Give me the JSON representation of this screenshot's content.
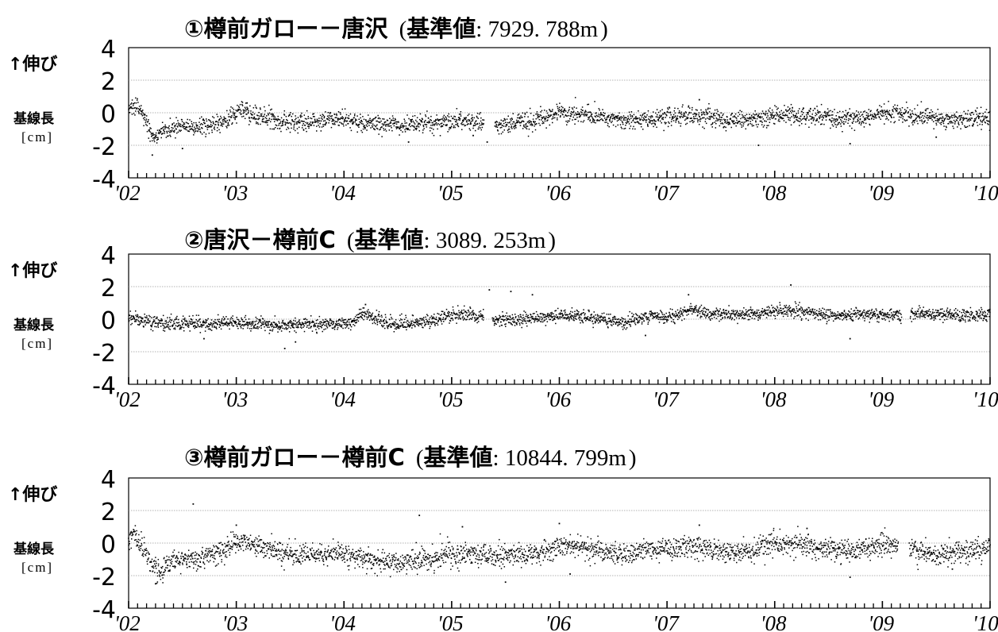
{
  "common": {
    "ylabel_arrow": "↑伸び",
    "ylabel_main": "基線長",
    "ylabel_unit": "[cm]",
    "x_tick_labels": [
      "'02",
      "'03",
      "'04",
      "'05",
      "'06",
      "'07",
      "'08",
      "'09",
      "'10"
    ],
    "y_tick_labels": [
      "4",
      "2",
      "0",
      "-2",
      "-4"
    ]
  },
  "chart_data": [
    {
      "type": "scatter",
      "title_prefix": "①樽前ガロー－唐沢",
      "title_ref_label": "基準値",
      "title_ref_value": "7929. 788m",
      "x_range": [
        2002.0,
        2010.0
      ],
      "ylim": [
        -4,
        4
      ],
      "gridlines": [
        2,
        0,
        -2
      ],
      "legend": "none",
      "gaps": [
        [
          2005.3,
          2005.4
        ]
      ],
      "series": [
        {
          "values": [
            [
              2002.0,
              0.1
            ],
            [
              2002.05,
              0.4
            ],
            [
              2002.1,
              0.3
            ],
            [
              2002.15,
              -0.4
            ],
            [
              2002.2,
              -1.1
            ],
            [
              2002.25,
              -1.5
            ],
            [
              2002.3,
              -1.2
            ],
            [
              2002.4,
              -0.9
            ],
            [
              2002.5,
              -0.8
            ],
            [
              2002.6,
              -0.9
            ],
            [
              2002.75,
              -0.8
            ],
            [
              2002.9,
              -0.5
            ],
            [
              2003.0,
              -0.1
            ],
            [
              2003.05,
              0.2
            ],
            [
              2003.15,
              -0.1
            ],
            [
              2003.3,
              -0.4
            ],
            [
              2003.5,
              -0.6
            ],
            [
              2003.7,
              -0.5
            ],
            [
              2003.9,
              -0.4
            ],
            [
              2004.1,
              -0.5
            ],
            [
              2004.3,
              -0.7
            ],
            [
              2004.5,
              -0.8
            ],
            [
              2004.7,
              -0.7
            ],
            [
              2004.9,
              -0.6
            ],
            [
              2005.1,
              -0.5
            ],
            [
              2005.29,
              -0.6
            ],
            [
              2005.42,
              -0.7
            ],
            [
              2005.6,
              -0.7
            ],
            [
              2005.8,
              -0.4
            ],
            [
              2006.0,
              0.0
            ],
            [
              2006.2,
              -0.1
            ],
            [
              2006.4,
              -0.3
            ],
            [
              2006.6,
              -0.5
            ],
            [
              2006.8,
              -0.4
            ],
            [
              2007.0,
              -0.3
            ],
            [
              2007.2,
              -0.2
            ],
            [
              2007.4,
              -0.3
            ],
            [
              2007.6,
              -0.5
            ],
            [
              2007.8,
              -0.4
            ],
            [
              2008.0,
              -0.1
            ],
            [
              2008.2,
              -0.1
            ],
            [
              2008.4,
              -0.2
            ],
            [
              2008.6,
              -0.4
            ],
            [
              2008.8,
              -0.3
            ],
            [
              2009.0,
              0.0
            ],
            [
              2009.2,
              -0.1
            ],
            [
              2009.4,
              -0.3
            ],
            [
              2009.6,
              -0.5
            ],
            [
              2009.8,
              -0.4
            ],
            [
              2010.0,
              -0.3
            ]
          ],
          "outliers": [
            [
              2002.22,
              -2.6
            ],
            [
              2002.5,
              -2.2
            ],
            [
              2003.1,
              0.6
            ],
            [
              2003.35,
              -1.0
            ],
            [
              2004.6,
              -1.8
            ],
            [
              2005.2,
              -1.4
            ],
            [
              2005.33,
              -1.8
            ],
            [
              2007.3,
              0.8
            ],
            [
              2007.85,
              -2.0
            ],
            [
              2008.7,
              -1.9
            ],
            [
              2009.5,
              -1.5
            ]
          ],
          "noise_sd": 0.27
        }
      ]
    },
    {
      "type": "scatter",
      "title_prefix": "②唐沢－樽前C",
      "title_ref_label": "基準値",
      "title_ref_value": "3089. 253m",
      "x_range": [
        2002.0,
        2010.0
      ],
      "ylim": [
        -4,
        4
      ],
      "gridlines": [
        2,
        0,
        -2
      ],
      "legend": "none",
      "gaps": [
        [
          2005.3,
          2005.38
        ],
        [
          2009.18,
          2009.26
        ]
      ],
      "series": [
        {
          "values": [
            [
              2002.0,
              0.1
            ],
            [
              2002.1,
              -0.1
            ],
            [
              2002.3,
              -0.3
            ],
            [
              2002.5,
              -0.3
            ],
            [
              2002.7,
              -0.3
            ],
            [
              2002.9,
              -0.2
            ],
            [
              2003.0,
              -0.2
            ],
            [
              2003.2,
              -0.3
            ],
            [
              2003.4,
              -0.4
            ],
            [
              2003.6,
              -0.3
            ],
            [
              2003.8,
              -0.3
            ],
            [
              2004.0,
              -0.3
            ],
            [
              2004.1,
              -0.2
            ],
            [
              2004.18,
              0.5
            ],
            [
              2004.25,
              0.1
            ],
            [
              2004.4,
              -0.2
            ],
            [
              2004.6,
              -0.3
            ],
            [
              2004.8,
              -0.1
            ],
            [
              2004.95,
              0.2
            ],
            [
              2005.1,
              0.3
            ],
            [
              2005.29,
              0.1
            ],
            [
              2005.4,
              -0.1
            ],
            [
              2005.6,
              0.0
            ],
            [
              2005.8,
              0.1
            ],
            [
              2006.0,
              0.2
            ],
            [
              2006.2,
              0.2
            ],
            [
              2006.4,
              0.0
            ],
            [
              2006.6,
              -0.2
            ],
            [
              2006.8,
              0.1
            ],
            [
              2007.0,
              0.2
            ],
            [
              2007.15,
              0.4
            ],
            [
              2007.25,
              0.6
            ],
            [
              2007.4,
              0.3
            ],
            [
              2007.6,
              0.3
            ],
            [
              2007.8,
              0.3
            ],
            [
              2008.0,
              0.5
            ],
            [
              2008.2,
              0.5
            ],
            [
              2008.4,
              0.3
            ],
            [
              2008.6,
              0.2
            ],
            [
              2008.8,
              0.3
            ],
            [
              2009.0,
              0.3
            ],
            [
              2009.17,
              0.2
            ],
            [
              2009.27,
              0.3
            ],
            [
              2009.5,
              0.3
            ],
            [
              2009.7,
              0.2
            ],
            [
              2009.9,
              0.3
            ],
            [
              2010.0,
              0.3
            ]
          ],
          "outliers": [
            [
              2002.7,
              -1.2
            ],
            [
              2003.45,
              -1.8
            ],
            [
              2003.55,
              -1.4
            ],
            [
              2004.2,
              0.9
            ],
            [
              2005.35,
              1.8
            ],
            [
              2005.55,
              1.7
            ],
            [
              2005.75,
              1.5
            ],
            [
              2006.8,
              -1.0
            ],
            [
              2007.2,
              1.5
            ],
            [
              2008.15,
              2.1
            ],
            [
              2008.7,
              -1.2
            ]
          ],
          "noise_sd": 0.2
        }
      ]
    },
    {
      "type": "scatter",
      "title_prefix": "③樽前ガロー－樽前C",
      "title_ref_label": "基準値",
      "title_ref_value": "10844. 799m",
      "x_range": [
        2002.0,
        2010.0
      ],
      "ylim": [
        -4,
        4
      ],
      "gridlines": [
        2,
        0,
        -2
      ],
      "legend": "none",
      "gaps": [
        [
          2009.15,
          2009.25
        ]
      ],
      "series": [
        {
          "values": [
            [
              2002.0,
              0.2
            ],
            [
              2002.05,
              0.5
            ],
            [
              2002.12,
              0.0
            ],
            [
              2002.2,
              -1.2
            ],
            [
              2002.3,
              -1.7
            ],
            [
              2002.4,
              -1.2
            ],
            [
              2002.5,
              -1.0
            ],
            [
              2002.7,
              -0.9
            ],
            [
              2002.85,
              -0.6
            ],
            [
              2003.0,
              0.0
            ],
            [
              2003.1,
              0.1
            ],
            [
              2003.3,
              -0.4
            ],
            [
              2003.5,
              -0.7
            ],
            [
              2003.7,
              -0.8
            ],
            [
              2003.9,
              -0.7
            ],
            [
              2004.1,
              -0.8
            ],
            [
              2004.3,
              -1.1
            ],
            [
              2004.5,
              -1.2
            ],
            [
              2004.7,
              -1.0
            ],
            [
              2004.9,
              -0.8
            ],
            [
              2005.1,
              -0.6
            ],
            [
              2005.3,
              -0.7
            ],
            [
              2005.5,
              -0.8
            ],
            [
              2005.7,
              -0.7
            ],
            [
              2005.9,
              -0.5
            ],
            [
              2006.0,
              -0.2
            ],
            [
              2006.2,
              -0.2
            ],
            [
              2006.4,
              -0.5
            ],
            [
              2006.6,
              -0.7
            ],
            [
              2006.8,
              -0.5
            ],
            [
              2007.0,
              -0.3
            ],
            [
              2007.2,
              -0.2
            ],
            [
              2007.4,
              -0.4
            ],
            [
              2007.6,
              -0.6
            ],
            [
              2007.8,
              -0.4
            ],
            [
              2008.0,
              0.0
            ],
            [
              2008.2,
              -0.1
            ],
            [
              2008.4,
              -0.3
            ],
            [
              2008.6,
              -0.5
            ],
            [
              2008.8,
              -0.3
            ],
            [
              2009.0,
              -0.1
            ],
            [
              2009.14,
              -0.2
            ],
            [
              2009.26,
              -0.4
            ],
            [
              2009.5,
              -0.7
            ],
            [
              2009.7,
              -0.6
            ],
            [
              2009.9,
              -0.4
            ],
            [
              2010.0,
              -0.3
            ]
          ],
          "outliers": [
            [
              2002.25,
              -2.5
            ],
            [
              2002.6,
              2.4
            ],
            [
              2003.0,
              1.1
            ],
            [
              2004.7,
              1.7
            ],
            [
              2005.1,
              1.0
            ],
            [
              2005.5,
              -2.4
            ],
            [
              2006.0,
              1.2
            ],
            [
              2006.1,
              -1.9
            ],
            [
              2007.3,
              1.1
            ],
            [
              2008.3,
              0.9
            ],
            [
              2008.7,
              -2.1
            ],
            [
              2009.65,
              -1.6
            ]
          ],
          "noise_sd": 0.34
        }
      ]
    }
  ]
}
